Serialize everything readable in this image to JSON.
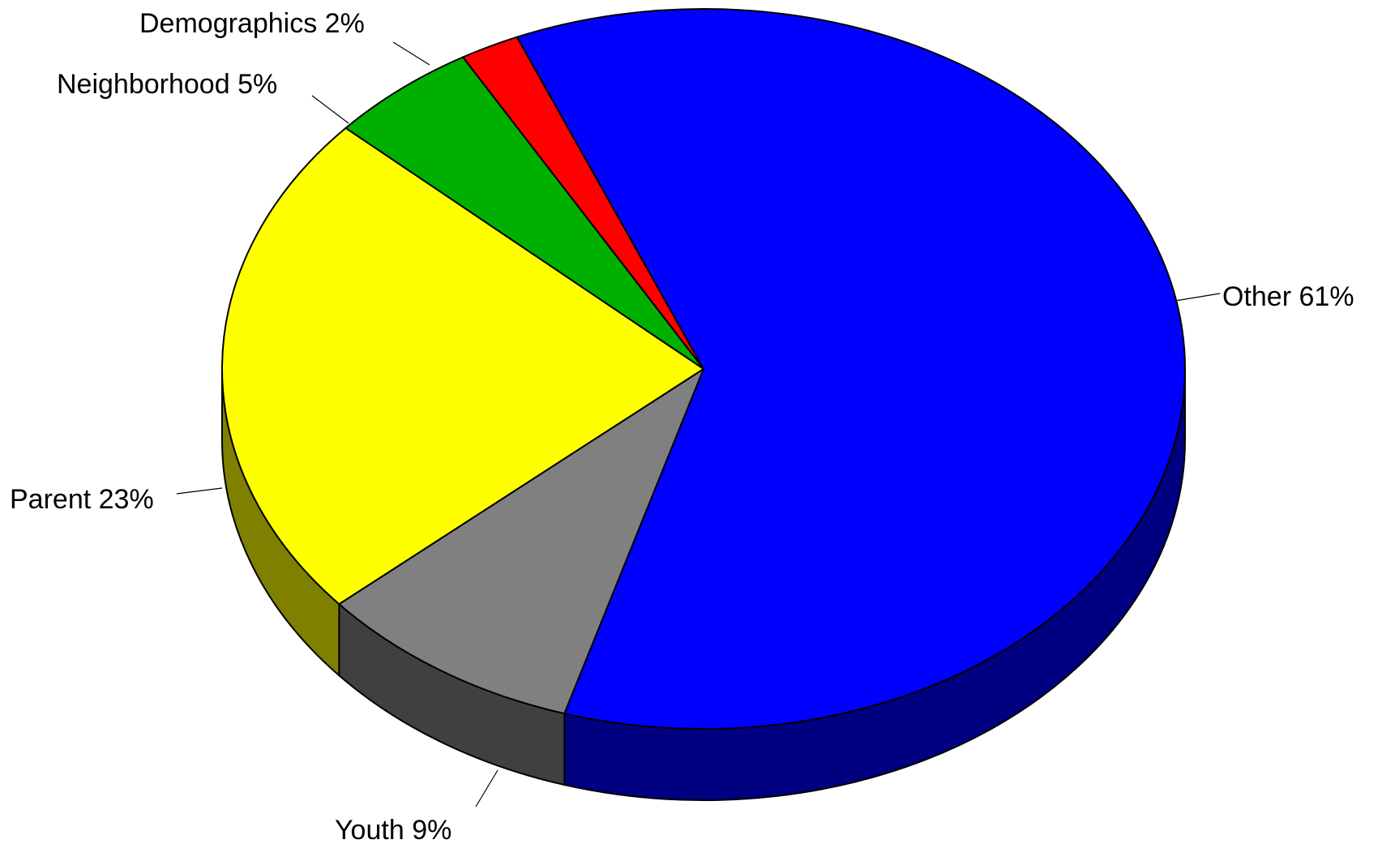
{
  "chart_data": {
    "type": "pie",
    "style": "3d",
    "slices": [
      {
        "label": "Demographics",
        "value": 2,
        "percent_label": "2%",
        "color": "#ff0000",
        "side_color": "#800000"
      },
      {
        "label": "Other",
        "value": 61,
        "percent_label": "61%",
        "color": "#0000ff",
        "side_color": "#000080"
      },
      {
        "label": "Youth",
        "value": 9,
        "percent_label": "9%",
        "color": "#808080",
        "side_color": "#404040"
      },
      {
        "label": "Parent",
        "value": 23,
        "percent_label": "23%",
        "color": "#ffff00",
        "side_color": "#808000"
      },
      {
        "label": "Neighborhood",
        "value": 5,
        "percent_label": "5%",
        "color": "#00b000",
        "side_color": "#005800"
      }
    ],
    "legend": "none"
  }
}
